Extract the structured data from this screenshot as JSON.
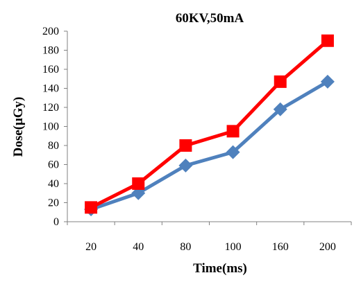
{
  "chart_data": {
    "type": "line",
    "title": "60KV,50mA",
    "xlabel": "Time(ms)",
    "ylabel": "Dose(μGy)",
    "categories": [
      "20",
      "40",
      "80",
      "100",
      "160",
      "200"
    ],
    "ylim": [
      0,
      200
    ],
    "yticks": [
      0,
      20,
      40,
      60,
      80,
      100,
      120,
      140,
      160,
      180,
      200
    ],
    "grid": false,
    "series": [
      {
        "color": "#4f81bd",
        "marker": "diamond",
        "values": [
          13,
          30,
          59,
          73,
          118,
          147
        ]
      },
      {
        "color": "#ff0000",
        "marker": "square",
        "values": [
          15,
          40,
          80,
          95,
          147,
          190
        ]
      }
    ]
  }
}
